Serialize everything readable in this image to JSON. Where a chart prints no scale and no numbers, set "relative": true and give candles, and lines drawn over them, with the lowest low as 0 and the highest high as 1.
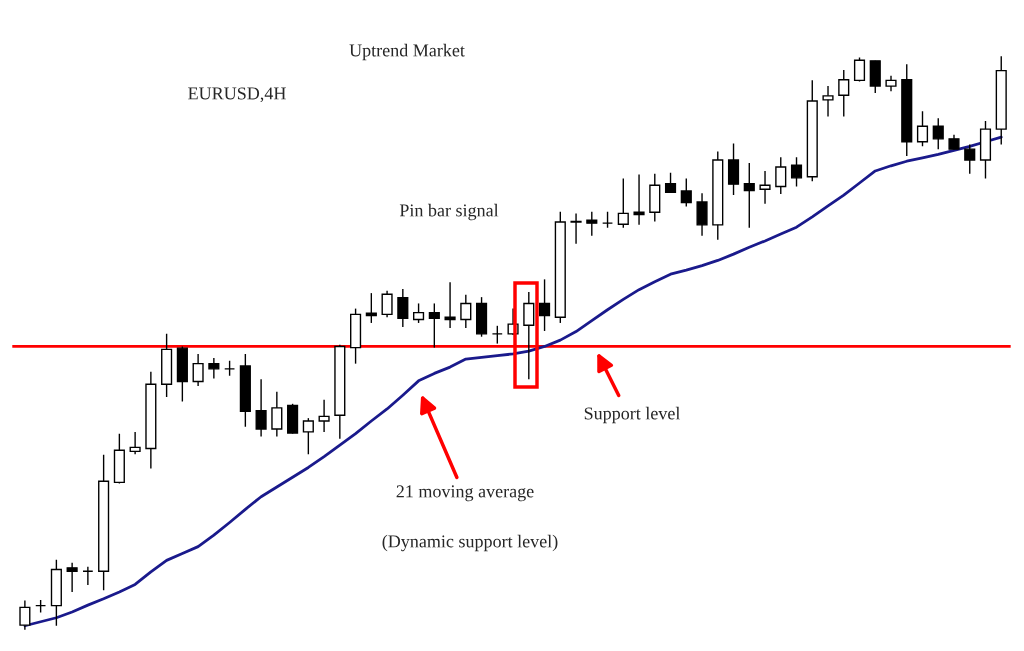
{
  "chart_data": {
    "type": "candlestick",
    "title": "Uptrend Market",
    "subtitle": "EURUSD,4H",
    "relative": true,
    "categories": [
      null,
      null,
      null,
      null,
      null,
      null,
      null,
      null,
      null,
      null,
      null,
      null,
      null,
      null,
      null,
      null,
      null,
      null,
      null,
      null,
      null,
      null,
      null,
      null,
      null,
      null,
      null,
      null,
      null,
      null,
      null,
      null,
      null,
      null,
      null,
      null,
      null,
      null,
      null,
      null,
      null,
      null,
      null,
      null,
      null,
      null,
      null,
      null,
      null,
      null,
      null,
      null,
      null,
      null,
      null,
      null,
      null,
      null,
      null,
      null,
      null,
      null,
      null
    ],
    "ohlc": [
      [
        0.008,
        0.051,
        0,
        0.039
      ],
      [
        0.042,
        0.052,
        0.03,
        0.042
      ],
      [
        0.042,
        0.122,
        0.007,
        0.105
      ],
      [
        0.108,
        0.117,
        0.066,
        0.102
      ],
      [
        0.102,
        0.11,
        0.078,
        0.102
      ],
      [
        0.102,
        0.305,
        0.069,
        0.259
      ],
      [
        0.257,
        0.342,
        0.255,
        0.313
      ],
      [
        0.311,
        0.345,
        0.306,
        0.318
      ],
      [
        0.316,
        0.45,
        0.281,
        0.428
      ],
      [
        0.428,
        0.516,
        0.406,
        0.489
      ],
      [
        0.491,
        0.494,
        0.398,
        0.433
      ],
      [
        0.433,
        0.481,
        0.425,
        0.464
      ],
      [
        0.464,
        0.474,
        0.438,
        0.455
      ],
      [
        0.455,
        0.469,
        0.443,
        0.455
      ],
      [
        0.46,
        0.481,
        0.354,
        0.381
      ],
      [
        0.382,
        0.437,
        0.337,
        0.35
      ],
      [
        0.35,
        0.415,
        0.337,
        0.387
      ],
      [
        0.391,
        0.394,
        0.342,
        0.343
      ],
      [
        0.345,
        0.369,
        0.306,
        0.364
      ],
      [
        0.364,
        0.401,
        0.345,
        0.372
      ],
      [
        0.374,
        0.497,
        0.333,
        0.494
      ],
      [
        0.492,
        0.56,
        0.464,
        0.55
      ],
      [
        0.552,
        0.587,
        0.535,
        0.548
      ],
      [
        0.55,
        0.591,
        0.545,
        0.585
      ],
      [
        0.579,
        0.594,
        0.528,
        0.543
      ],
      [
        0.541,
        0.569,
        0.535,
        0.553
      ],
      [
        0.553,
        0.569,
        0.492,
        0.543
      ],
      [
        0.545,
        0.606,
        0.526,
        0.541
      ],
      [
        0.541,
        0.584,
        0.526,
        0.569
      ],
      [
        0.569,
        0.58,
        0.511,
        0.516
      ],
      [
        0.516,
        0.53,
        0.499,
        0.516
      ],
      [
        0.516,
        0.56,
        0.514,
        0.533
      ],
      [
        0.531,
        0.589,
        0.437,
        0.569
      ],
      [
        0.569,
        0.611,
        0.521,
        0.548
      ],
      [
        0.545,
        0.729,
        0.535,
        0.711
      ],
      [
        0.712,
        0.726,
        0.673,
        0.711
      ],
      [
        0.714,
        0.729,
        0.687,
        0.709
      ],
      [
        0.709,
        0.729,
        0.701,
        0.709
      ],
      [
        0.707,
        0.787,
        0.701,
        0.726
      ],
      [
        0.728,
        0.794,
        0.706,
        0.724
      ],
      [
        0.728,
        0.795,
        0.712,
        0.775
      ],
      [
        0.778,
        0.797,
        0.763,
        0.763
      ],
      [
        0.765,
        0.787,
        0.738,
        0.745
      ],
      [
        0.746,
        0.761,
        0.687,
        0.706
      ],
      [
        0.706,
        0.834,
        0.68,
        0.819
      ],
      [
        0.819,
        0.848,
        0.758,
        0.777
      ],
      [
        0.778,
        0.814,
        0.701,
        0.766
      ],
      [
        0.768,
        0.8,
        0.743,
        0.775
      ],
      [
        0.773,
        0.824,
        0.76,
        0.807
      ],
      [
        0.81,
        0.824,
        0.773,
        0.788
      ],
      [
        0.79,
        0.958,
        0.782,
        0.922
      ],
      [
        0.924,
        0.948,
        0.895,
        0.931
      ],
      [
        0.932,
        0.976,
        0.895,
        0.959
      ],
      [
        0.958,
        0.998,
        0.956,
        0.993
      ],
      [
        0.992,
        0.992,
        0.936,
        0.948
      ],
      [
        0.948,
        0.966,
        0.939,
        0.958
      ],
      [
        0.959,
        0.986,
        0.826,
        0.851
      ],
      [
        0.851,
        0.904,
        0.843,
        0.878
      ],
      [
        0.878,
        0.892,
        0.838,
        0.856
      ],
      [
        0.856,
        0.863,
        0.838,
        0.838
      ],
      [
        0.838,
        0.846,
        0.795,
        0.819
      ],
      [
        0.819,
        0.887,
        0.787,
        0.873
      ],
      [
        0.873,
        1.0,
        0.846,
        0.975
      ]
    ],
    "series": [
      {
        "type": "line",
        "color": "#1a1a8c",
        "values": [
          0.007,
          0.014,
          0.021,
          0.031,
          0.043,
          0.054,
          0.066,
          0.079,
          0.101,
          0.121,
          0.133,
          0.145,
          0.165,
          0.187,
          0.21,
          0.232,
          0.249,
          0.266,
          0.283,
          0.302,
          0.322,
          0.342,
          0.364,
          0.385,
          0.409,
          0.434,
          0.447,
          0.458,
          0.472,
          0.475,
          0.478,
          0.481,
          0.486,
          0.494,
          0.505,
          0.52,
          0.539,
          0.558,
          0.576,
          0.593,
          0.607,
          0.62,
          0.627,
          0.635,
          0.644,
          0.655,
          0.667,
          0.678,
          0.69,
          0.702,
          0.72,
          0.739,
          0.758,
          0.779,
          0.8,
          0.809,
          0.817,
          0.823,
          0.829,
          0.836,
          0.843,
          0.851,
          0.859
        ]
      }
    ],
    "ref_lines": [
      {
        "axis": "y",
        "value": 0.494,
        "color": "#ff0000"
      }
    ],
    "annotations": [
      "Pin bar signal",
      "Support level",
      "21 moving average",
      "(Dynamic support level)"
    ]
  }
}
